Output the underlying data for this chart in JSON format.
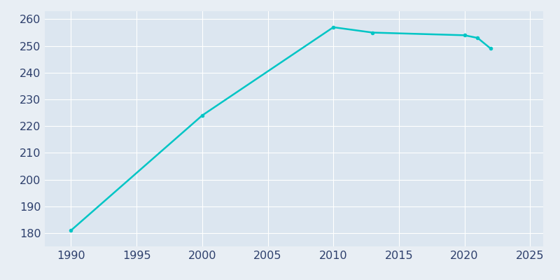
{
  "years": [
    1990,
    2000,
    2010,
    2013,
    2020,
    2021,
    2022
  ],
  "population": [
    181,
    224,
    257,
    255,
    254,
    253,
    249
  ],
  "line_color": "#00C5C5",
  "marker_color": "#00C5C5",
  "fig_bg_color": "#E8EEF4",
  "plot_bg_color": "#DCE6F0",
  "grid_color": "#FFFFFF",
  "tick_color": "#2D3F6C",
  "xlim": [
    1988,
    2026
  ],
  "ylim": [
    175,
    263
  ],
  "xticks": [
    1990,
    1995,
    2000,
    2005,
    2010,
    2015,
    2020,
    2025
  ],
  "yticks": [
    180,
    190,
    200,
    210,
    220,
    230,
    240,
    250,
    260
  ],
  "linewidth": 1.8,
  "markersize": 4,
  "tick_labelsize": 11.5
}
